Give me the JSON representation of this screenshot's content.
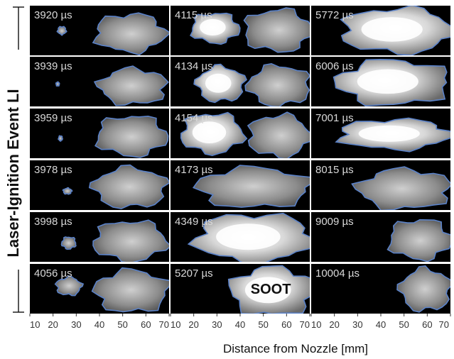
{
  "side_title": "Laser-Ignition Event LI",
  "x_axis_title": "Distance from Nozzle [mm]",
  "x_tick_labels": [
    [
      "10",
      "20",
      "30",
      "40",
      "50",
      "60",
      "70"
    ],
    [
      "10",
      "20",
      "30",
      "40",
      "50",
      "60",
      "70"
    ],
    [
      "10",
      "20",
      "30",
      "40",
      "50",
      "60",
      "70"
    ]
  ],
  "soot_label": "SOOT",
  "time_unit": "µs",
  "columns": [
    {
      "times": [
        "3920",
        "3939",
        "3959",
        "3978",
        "3998",
        "4056"
      ]
    },
    {
      "times": [
        "4115",
        "4134",
        "4154",
        "4173",
        "4349",
        "5207"
      ]
    },
    {
      "times": [
        "5772",
        "6006",
        "7001",
        "8015",
        "9009",
        "10004"
      ]
    }
  ],
  "colors": {
    "frame": "#000000",
    "flame_outline": "#5b82c8",
    "soot": "#ffffff"
  }
}
